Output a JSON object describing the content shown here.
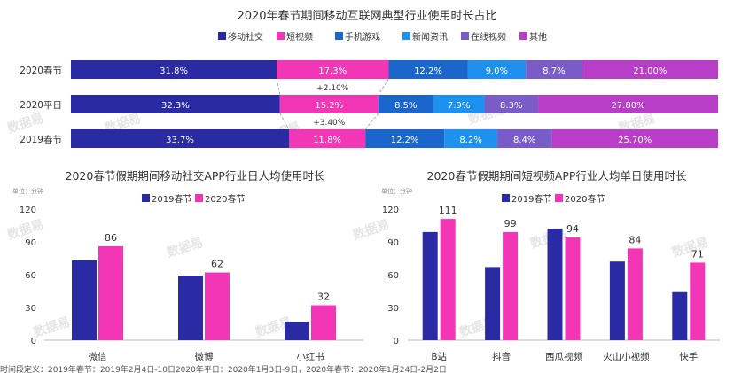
{
  "colors": {
    "移动社交": "#2a2aa4",
    "短视频": "#f236b6",
    "手机游戏": "#1a66cc",
    "新闻资讯": "#1e90f0",
    "在线视频": "#7a5cc8",
    "其他": "#b83ec8",
    "series2019": "#2a2aa4",
    "series2020": "#f236b6"
  },
  "chart_data": [
    {
      "type": "bar",
      "orientation": "horizontal-stacked-100",
      "title": "2020年春节期间移动互联网典型行业使用时长占比",
      "legend": [
        "移动社交",
        "短视频",
        "手机游戏",
        "新闻资讯",
        "在线视频",
        "其他"
      ],
      "categories": [
        "2020春节",
        "2020平日",
        "2019春节"
      ],
      "series": [
        {
          "name": "移动社交",
          "values": [
            31.8,
            32.3,
            33.7
          ],
          "labels": [
            "31.8%",
            "32.3%",
            "33.7%"
          ]
        },
        {
          "name": "短视频",
          "values": [
            17.3,
            15.2,
            11.8
          ],
          "labels": [
            "17.3%",
            "15.2%",
            "11.8%"
          ]
        },
        {
          "name": "手机游戏",
          "values": [
            12.2,
            8.5,
            12.2
          ],
          "labels": [
            "12.2%",
            "8.5%",
            "12.2%"
          ]
        },
        {
          "name": "新闻资讯",
          "values": [
            9.0,
            7.9,
            8.2
          ],
          "labels": [
            "9.0%",
            "7.9%",
            "8.2%"
          ]
        },
        {
          "name": "在线视频",
          "values": [
            8.7,
            8.3,
            8.4
          ],
          "labels": [
            "8.7%",
            "8.3%",
            "8.4%"
          ]
        },
        {
          "name": "其他",
          "values": [
            21.0,
            27.8,
            25.7
          ],
          "labels": [
            "21.00%",
            "27.80%",
            "25.70%"
          ]
        }
      ],
      "annotations": [
        "+2.10%",
        "+3.40%"
      ],
      "legend_position": "top"
    },
    {
      "type": "bar",
      "title": "2020春节假期期间移动社交APP行业日人均使用时长",
      "unit": "单位：分钟",
      "categories": [
        "微信",
        "微博",
        "小红书"
      ],
      "series": [
        {
          "name": "2019春节",
          "values": [
            73,
            59,
            17
          ]
        },
        {
          "name": "2020春节",
          "values": [
            86,
            62,
            32
          ]
        }
      ],
      "data_labels": [
        "86",
        "62",
        "32"
      ],
      "yticks": [
        "0",
        "30",
        "60",
        "90",
        "120"
      ],
      "ylim": [
        0,
        120
      ],
      "legend_position": "top"
    },
    {
      "type": "bar",
      "title": "2020春节假期期间短视频APP行业人均单日使用时长",
      "unit": "单位：分钟",
      "categories": [
        "B站",
        "抖音",
        "西瓜视频",
        "火山小视频",
        "快手"
      ],
      "series": [
        {
          "name": "2019春节",
          "values": [
            99,
            67,
            102,
            72,
            44
          ]
        },
        {
          "name": "2020春节",
          "values": [
            111,
            99,
            94,
            84,
            71
          ]
        }
      ],
      "data_labels": [
        "111",
        "99",
        "94",
        "84",
        "71"
      ],
      "yticks": [
        "0",
        "30",
        "60",
        "90",
        "120"
      ],
      "ylim": [
        0,
        120
      ],
      "legend_position": "top"
    }
  ],
  "watermark": "数据易",
  "footnote": "时间段定义：2019年春节：2019年2月4日-10日2020年平日：2020年1月3日-9日，2020年春节：2020年1月24日-2月2日"
}
